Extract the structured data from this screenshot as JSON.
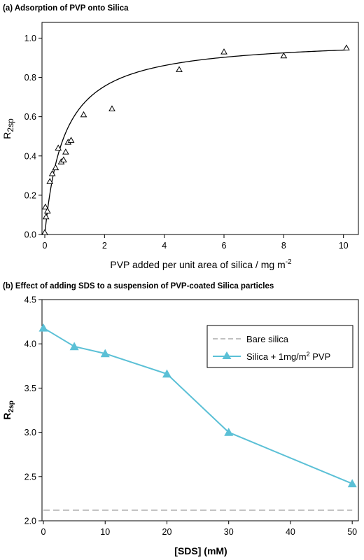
{
  "chart_data": [
    {
      "type": "scatter",
      "title": "(a) Adsorption of PVP onto Silica",
      "xlabel": "PVP added per unit area of silica / mg m",
      "xlabel_sup": "-2",
      "ylabel_main": "R",
      "ylabel_sub": "2sp",
      "xlim": [
        0,
        10.5
      ],
      "ylim": [
        0,
        1.08
      ],
      "x_ticks": [
        "0",
        "2",
        "4",
        "6",
        "8",
        "10"
      ],
      "y_ticks": [
        "0.0",
        "0.2",
        "0.4",
        "0.6",
        "0.8",
        "1.0"
      ],
      "grid": false,
      "marker": "open-triangle",
      "points": [
        {
          "x": 0.0,
          "y": 0.01
        },
        {
          "x": 0.04,
          "y": 0.09
        },
        {
          "x": 0.02,
          "y": 0.14
        },
        {
          "x": 0.09,
          "y": 0.12
        },
        {
          "x": 0.17,
          "y": 0.27
        },
        {
          "x": 0.25,
          "y": 0.31
        },
        {
          "x": 0.36,
          "y": 0.34
        },
        {
          "x": 0.45,
          "y": 0.44
        },
        {
          "x": 0.55,
          "y": 0.37
        },
        {
          "x": 0.63,
          "y": 0.38
        },
        {
          "x": 0.7,
          "y": 0.42
        },
        {
          "x": 0.78,
          "y": 0.47
        },
        {
          "x": 0.88,
          "y": 0.48
        },
        {
          "x": 1.3,
          "y": 0.61
        },
        {
          "x": 2.25,
          "y": 0.64
        },
        {
          "x": 4.5,
          "y": 0.84
        },
        {
          "x": 6.0,
          "y": 0.93
        },
        {
          "x": 8.0,
          "y": 0.91
        },
        {
          "x": 10.1,
          "y": 0.95
        }
      ],
      "fit_curve": {
        "form": "a*x/(b+x)",
        "a": 1.0,
        "b": 0.65
      }
    },
    {
      "type": "line",
      "title": "(b) Effect of adding SDS to a suspension of PVP-coated Silica particles",
      "xlabel": "[SDS] (mM)",
      "ylabel_main": "R",
      "ylabel_sub": "2sp",
      "xlim": [
        0,
        51
      ],
      "ylim": [
        2.0,
        4.5
      ],
      "x_ticks": [
        "0",
        "10",
        "20",
        "30",
        "40",
        "50"
      ],
      "y_ticks": [
        "2.0",
        "2.5",
        "3.0",
        "3.5",
        "4.0",
        "4.5"
      ],
      "grid": false,
      "legend_position": "top-right",
      "series": [
        {
          "name": "Bare silica",
          "style": "dashed",
          "color": "#9a9a9a",
          "x": [
            0,
            50
          ],
          "y": [
            2.12,
            2.12
          ]
        },
        {
          "name": "Silica + 1mg/m",
          "name_sup": "2",
          "name_suffix": " PVP",
          "style": "solid-triangle",
          "color": "#5bc0d6",
          "x": [
            0,
            5,
            10,
            20,
            30,
            50
          ],
          "y": [
            4.18,
            3.97,
            3.89,
            3.66,
            3.0,
            2.42
          ]
        }
      ]
    }
  ]
}
